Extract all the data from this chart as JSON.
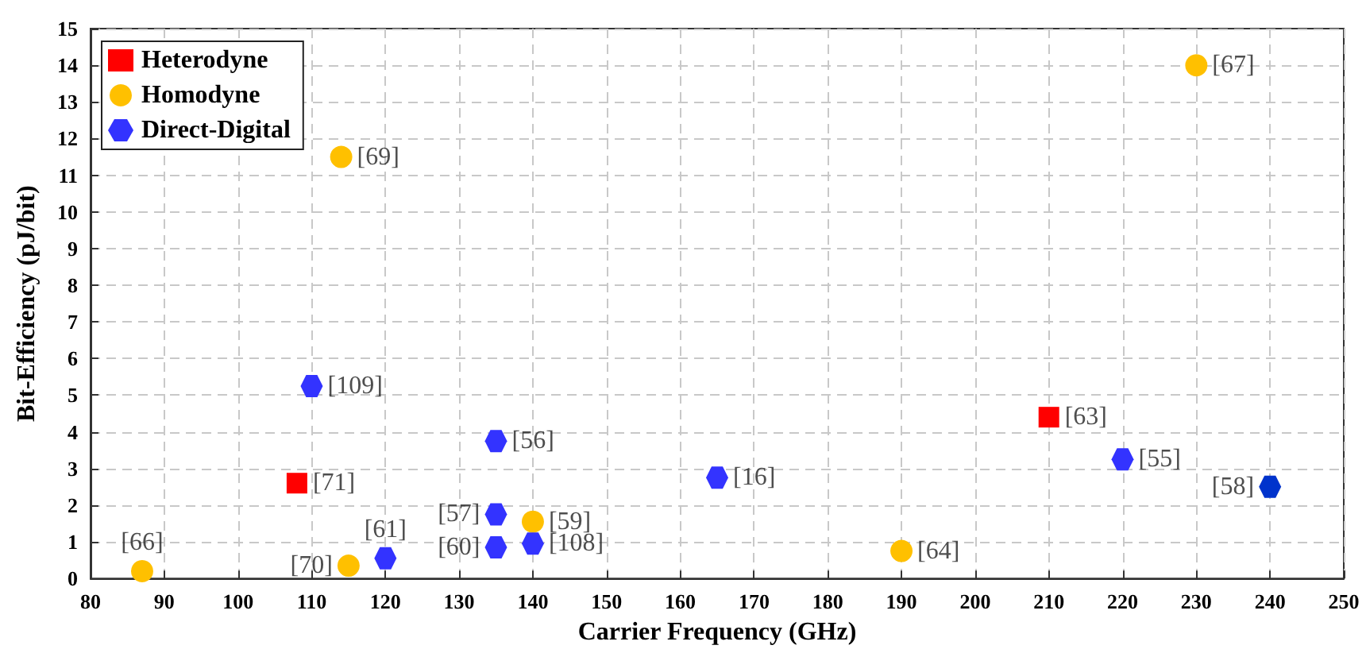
{
  "chart_data": {
    "type": "scatter",
    "xlabel": "Carrier Frequency (GHz)",
    "ylabel": "Bit-Efficiency (pJ/bit)",
    "xlim": [
      80,
      250
    ],
    "xticks": [
      80,
      90,
      100,
      110,
      120,
      130,
      140,
      150,
      160,
      170,
      180,
      190,
      200,
      210,
      220,
      230,
      240,
      250
    ],
    "ylim": [
      0,
      15
    ],
    "yticks": [
      0,
      1,
      2,
      3,
      4,
      5,
      6,
      7,
      8,
      9,
      10,
      11,
      12,
      13,
      14,
      15
    ],
    "grid": true,
    "legend": "top left",
    "series": [
      {
        "name": "Heterodyne",
        "color": "#ff0000",
        "marker": "square",
        "x": [
          108,
          210
        ],
        "values": [
          2.6,
          4.4
        ]
      },
      {
        "name": "Homodyne",
        "color": "#ffc000",
        "marker": "circle",
        "x": [
          87,
          114,
          230,
          115,
          140,
          190
        ],
        "values": [
          0.2,
          11.5,
          14,
          0.35,
          1.55,
          0.75
        ]
      },
      {
        "name": "Direct-Digital",
        "color": "#3333ff",
        "x": [
          110,
          135,
          165,
          135,
          135,
          140,
          120,
          220,
          240
        ],
        "values": [
          5.25,
          3.75,
          2.75,
          1.75,
          0.85,
          0.95,
          0.55,
          3.25,
          2.5
        ],
        "colors": [
          "#3333ff",
          "#3333ff",
          "#3333ff",
          "#3333ff",
          "#3333ff",
          "#3333ff",
          "#3333ff",
          "#3333ff",
          "#0033cc"
        ]
      }
    ],
    "annotations": [
      {
        "text": "[71]",
        "x": 108,
        "y": 2.6
      },
      {
        "text": "[63]",
        "x": 210,
        "y": 4.4
      },
      {
        "text": "[66]",
        "x": 87,
        "y": 0.2
      },
      {
        "text": "[69]",
        "x": 114,
        "y": 11.5
      },
      {
        "text": "[67]",
        "x": 230,
        "y": 14
      },
      {
        "text": "[70]",
        "x": 115,
        "y": 0.35
      },
      {
        "text": "[59]",
        "x": 140,
        "y": 1.55
      },
      {
        "text": "[64]",
        "x": 190,
        "y": 0.75
      },
      {
        "text": "[109]",
        "x": 110,
        "y": 5.25
      },
      {
        "text": "[56]",
        "x": 135,
        "y": 3.75
      },
      {
        "text": "[16]",
        "x": 165,
        "y": 2.75
      },
      {
        "text": "[57]",
        "x": 135,
        "y": 1.75
      },
      {
        "text": "[60]",
        "x": 135,
        "y": 0.85
      },
      {
        "text": "[108]",
        "x": 140,
        "y": 0.95
      },
      {
        "text": "[61]",
        "x": 120,
        "y": 0.55
      },
      {
        "text": "[55]",
        "x": 220,
        "y": 3.25
      },
      {
        "text": "[58]",
        "x": 240,
        "y": 2.5
      }
    ]
  }
}
